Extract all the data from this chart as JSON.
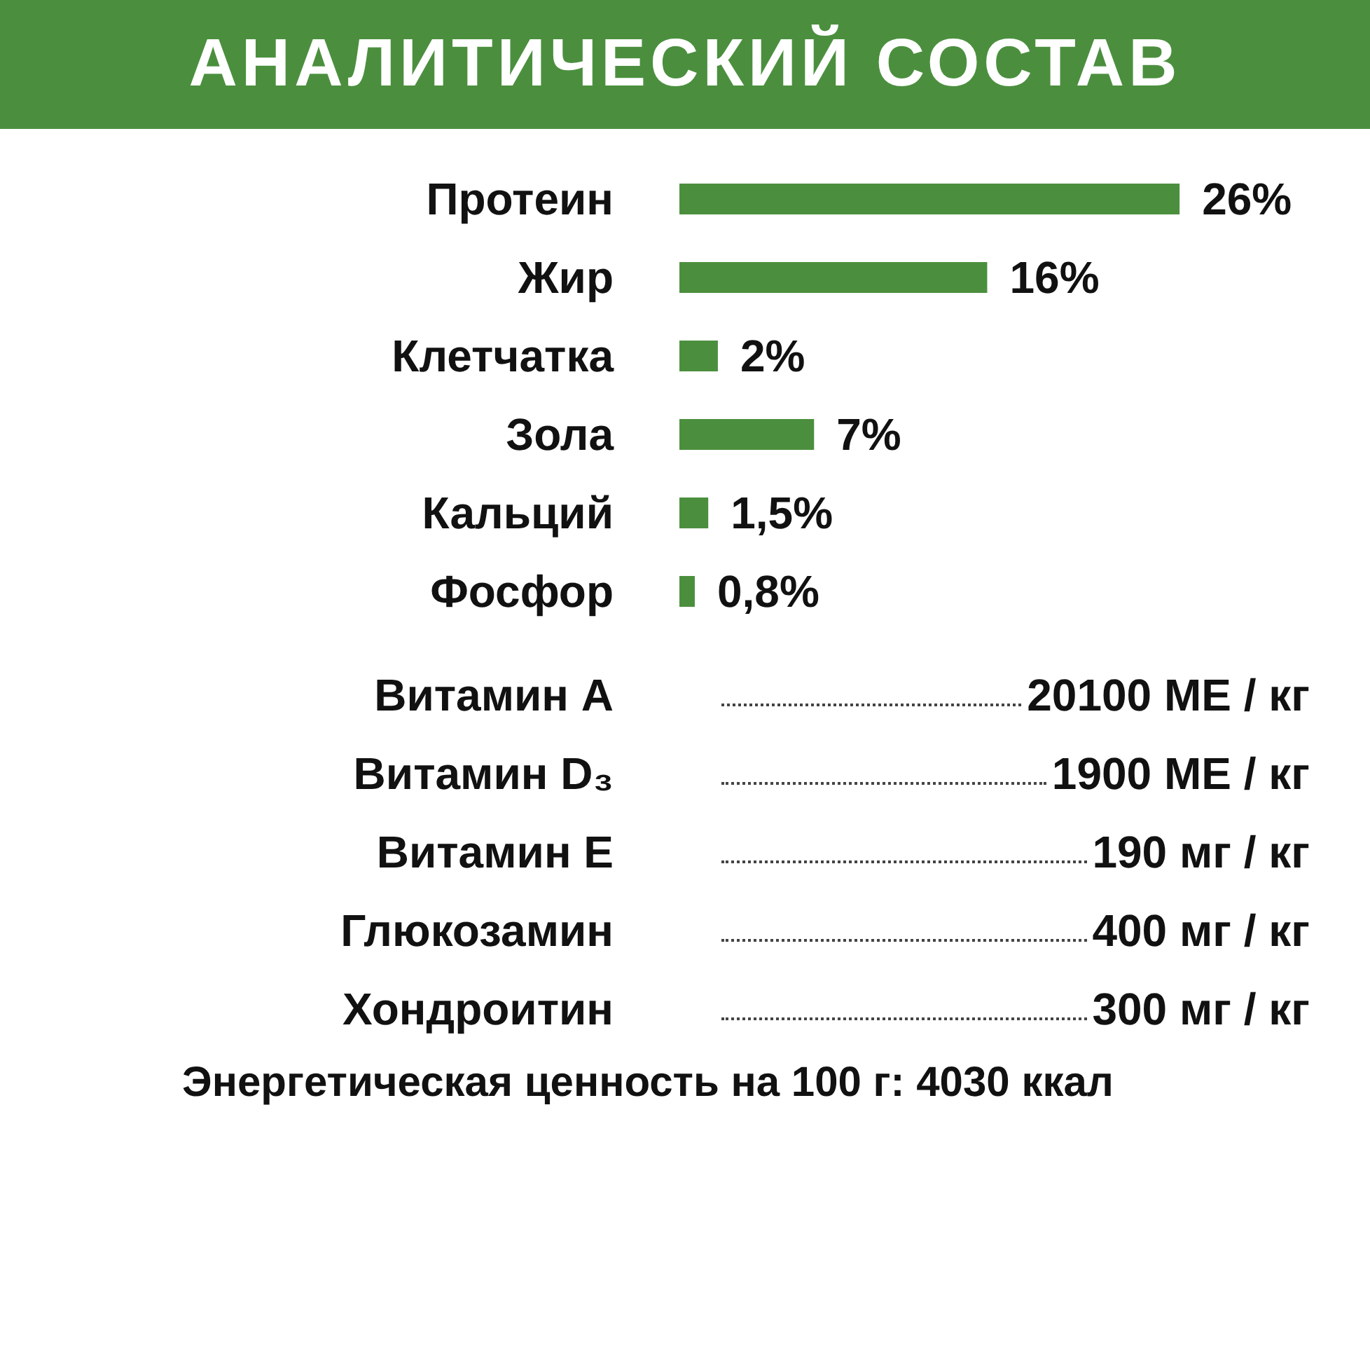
{
  "chart_data": {
    "type": "bar",
    "orientation": "horizontal",
    "title": "АНАЛИТИЧЕСКИЙ СОСТАВ",
    "categories": [
      "Протеин",
      "Жир",
      "Клетчатка",
      "Зола",
      "Кальций",
      "Фосфор"
    ],
    "values": [
      26,
      16,
      2,
      7,
      1.5,
      0.8
    ],
    "value_labels": [
      "26%",
      "16%",
      "2%",
      "7%",
      "1,5%",
      "0,8%"
    ],
    "color": "#4b8f3e",
    "annotations": [
      "Витамин A",
      "20100 МЕ / кг",
      "Витамин D₃",
      "1900 МЕ / кг",
      "Витамин E",
      "190 мг / кг",
      "Глюкозамин",
      "400 мг / кг",
      "Хондроитин",
      "300 мг / кг",
      "Энергетическая ценность на 100 г:  4030 ккал"
    ]
  }
}
